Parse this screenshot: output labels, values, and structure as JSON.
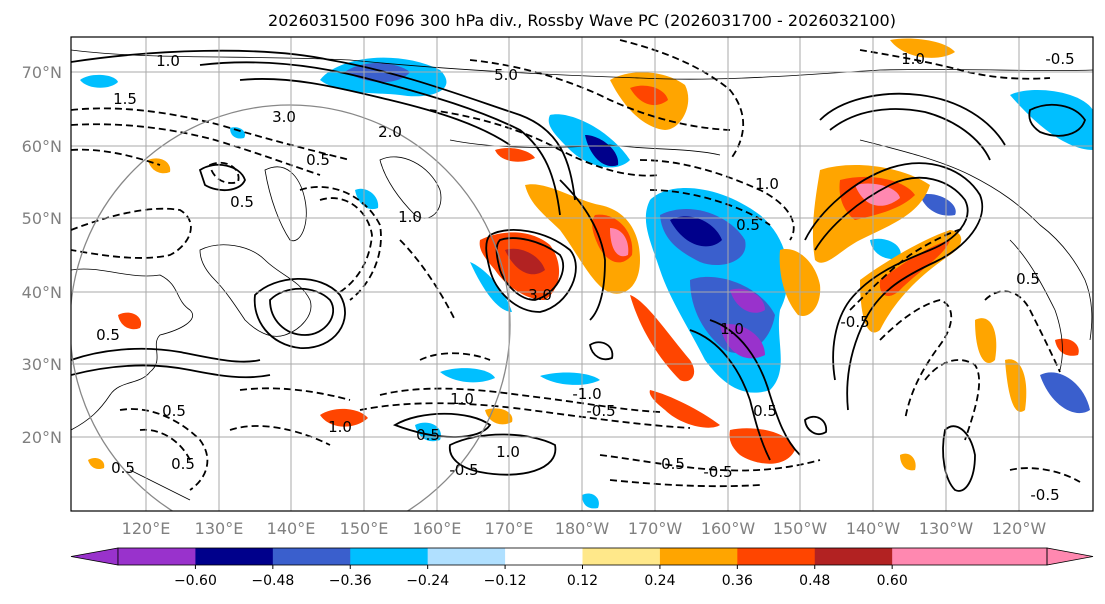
{
  "title": "2026031500 F096 300 hPa div., Rossby Wave PC (2026031700 - 2026032100)",
  "map": {
    "latitude_labels": [
      "70°N",
      "60°N",
      "50°N",
      "40°N",
      "30°N",
      "20°N"
    ],
    "longitude_labels": [
      "120°E",
      "130°E",
      "140°E",
      "150°E",
      "160°E",
      "170°E",
      "180°W",
      "170°W",
      "160°W",
      "150°W",
      "140°W",
      "130°W",
      "120°W"
    ],
    "contour_labels": [
      "1.0",
      "1.5",
      "3.0",
      "2.0",
      "5.0",
      "1.0",
      "0.5",
      "0.5",
      "1.0",
      "3.0",
      "1.0",
      "0.5",
      "0.5",
      "0.5",
      "1.0",
      "1.0",
      "0.5",
      "0.5",
      "0.5",
      "-1.0",
      "-0.5",
      "1.0",
      "-0.5",
      "0.5",
      "-0.5",
      "-0.5",
      "-0.5",
      "0.5",
      "1.0",
      "0.5",
      "-0.5"
    ],
    "colors": {
      "coastline": "#000000",
      "grid": "#aaaaaa",
      "circle": "#888888"
    }
  },
  "colorbar": {
    "ticks": [
      "−0.60",
      "−0.48",
      "−0.36",
      "−0.24",
      "−0.12",
      "0.12",
      "0.24",
      "0.36",
      "0.48",
      "0.60"
    ],
    "colors": [
      "#9932cc",
      "#00008b",
      "#3a5fcd",
      "#00bfff",
      "#b0e0ff",
      "#ffffff",
      "#ffe88a",
      "#ffa500",
      "#ff4500",
      "#b22222",
      "#ff88b0",
      "#ff88b0"
    ]
  }
}
